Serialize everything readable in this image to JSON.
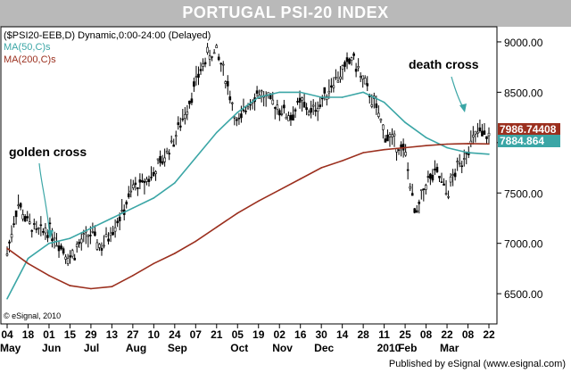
{
  "chart_data": {
    "type": "line",
    "title": "PORTUGAL PSI-20 INDEX",
    "subtitle": "($PSI20-EEB,D) Dynamic,0:00-24:00 (Delayed)",
    "footer": "Published by eSignal (www.esignal.com)",
    "watermark": "© eSignal, 2010",
    "ylim": [
      6200,
      9150
    ],
    "yticks": [
      "9000.00",
      "8500.00",
      "8000.00",
      "7500.00",
      "7000.00",
      "6500.00"
    ],
    "xtick_days": [
      "04",
      "18",
      "01",
      "15",
      "29",
      "13",
      "27",
      "10",
      "24",
      "07",
      "21",
      "05",
      "19",
      "02",
      "16",
      "30",
      "14",
      "28",
      "11",
      "25",
      "08",
      "22",
      "08",
      "22"
    ],
    "xtick_months": [
      {
        "label": "May",
        "index": 0
      },
      {
        "label": "Jun",
        "index": 2
      },
      {
        "label": "Jul",
        "index": 4
      },
      {
        "label": "Aug",
        "index": 6
      },
      {
        "label": "Sep",
        "index": 8
      },
      {
        "label": "Oct",
        "index": 11
      },
      {
        "label": "Nov",
        "index": 13
      },
      {
        "label": "Dec",
        "index": 15
      },
      {
        "label": "2010",
        "index": 18
      },
      {
        "label": "Feb",
        "index": 19
      },
      {
        "label": "Mar",
        "index": 21
      }
    ],
    "legend": [
      {
        "label": "MA(50,C)s",
        "color": "#3ba6a6"
      },
      {
        "label": "MA(200,C)s",
        "color": "#9b2f1e"
      }
    ],
    "last_values": [
      {
        "label": "7986.74408",
        "value": 7986.74,
        "color": "#9b2f1e"
      },
      {
        "label": "7884.864",
        "value": 7884.86,
        "color": "#3ba6a6"
      }
    ],
    "annotations": [
      {
        "text": "golden cross"
      },
      {
        "text": "death cross"
      }
    ],
    "series": [
      {
        "name": "PSI-20",
        "color": "#000000",
        "style": "candlestick",
        "x": [
          0,
          0.5,
          1,
          1.5,
          2,
          2.5,
          3,
          3.5,
          4,
          4.5,
          5,
          5.5,
          6,
          6.5,
          7,
          7.5,
          8,
          8.5,
          9,
          9.5,
          10,
          10.5,
          11,
          11.5,
          12,
          12.5,
          13,
          13.5,
          14,
          14.5,
          15,
          15.5,
          16,
          16.5,
          17,
          17.5,
          18,
          18.5,
          19,
          19.5,
          20,
          20.5,
          21,
          21.5,
          22,
          22.5,
          23
        ],
        "values": [
          6900,
          7400,
          7200,
          7100,
          7150,
          7000,
          6850,
          7000,
          7100,
          6950,
          7150,
          7300,
          7550,
          7600,
          7700,
          7850,
          8050,
          8300,
          8600,
          8850,
          8900,
          8600,
          8150,
          8400,
          8500,
          8400,
          8350,
          8250,
          8400,
          8300,
          8400,
          8600,
          8700,
          8850,
          8600,
          8400,
          8100,
          8000,
          7900,
          7250,
          7600,
          7700,
          7500,
          7750,
          7950,
          8100,
          8050
        ]
      },
      {
        "name": "MA(50,C)s",
        "color": "#3ba6a6",
        "x": [
          0,
          1,
          2,
          3,
          4,
          5,
          6,
          7,
          8,
          9,
          10,
          11,
          12,
          13,
          14,
          15,
          16,
          17,
          18,
          19,
          20,
          21,
          22,
          23
        ],
        "values": [
          6450,
          6850,
          7000,
          7050,
          7150,
          7250,
          7350,
          7450,
          7600,
          7850,
          8100,
          8300,
          8450,
          8500,
          8500,
          8450,
          8450,
          8500,
          8400,
          8200,
          8050,
          7950,
          7900,
          7885
        ]
      },
      {
        "name": "MA(200,C)s",
        "color": "#9b2f1e",
        "x": [
          0,
          1,
          2,
          3,
          4,
          5,
          6,
          7,
          8,
          9,
          10,
          11,
          12,
          13,
          14,
          15,
          16,
          17,
          18,
          19,
          20,
          21,
          22,
          23
        ],
        "values": [
          6950,
          6800,
          6680,
          6580,
          6550,
          6570,
          6680,
          6800,
          6900,
          7020,
          7160,
          7300,
          7420,
          7530,
          7640,
          7750,
          7820,
          7900,
          7930,
          7950,
          7970,
          7985,
          7990,
          7987
        ]
      }
    ]
  }
}
